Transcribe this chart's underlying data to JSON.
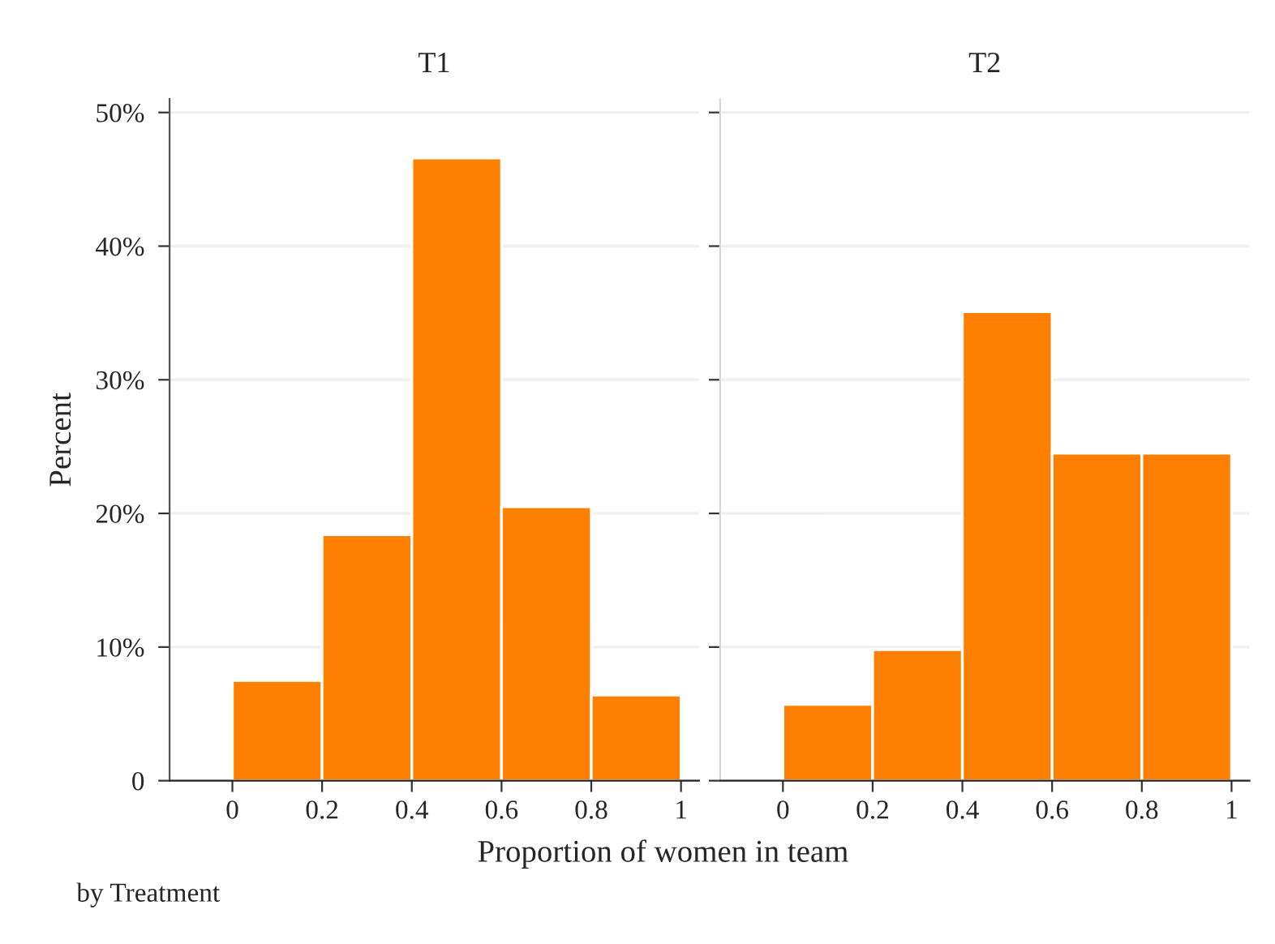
{
  "chart_data": [
    {
      "type": "histogram",
      "title": "T1",
      "ylabel": "Percent",
      "xlabel": "Proportion of women in team",
      "annotations": [
        "by Treatment"
      ],
      "bins": [
        0,
        0.2,
        0.4,
        0.6,
        0.8,
        1
      ],
      "values": [
        7.5,
        18.4,
        46.6,
        20.5,
        6.4
      ],
      "color": "#ff8000",
      "xlim": [
        -0.14,
        1.04
      ],
      "xticks": [
        0,
        0.2,
        0.4,
        0.6,
        0.8,
        1
      ],
      "ylim": [
        0,
        51
      ],
      "yticks": [
        0,
        {
          "value": 10,
          "label": "10%"
        },
        {
          "value": 20,
          "label": "20%"
        },
        {
          "value": 30,
          "label": "30%"
        },
        {
          "value": 40,
          "label": "40%"
        },
        {
          "value": 50,
          "label": "50%"
        }
      ],
      "grid": "y"
    },
    {
      "type": "histogram",
      "title": "T2",
      "bins": [
        0,
        0.2,
        0.4,
        0.6,
        0.8,
        1
      ],
      "values": [
        5.7,
        9.8,
        35.1,
        24.5,
        24.5
      ],
      "color": "#ff8000",
      "xlim": [
        -0.14,
        1.04
      ],
      "xticks": [
        0,
        0.2,
        0.4,
        0.6,
        0.8,
        1
      ],
      "ylim": [
        0,
        51
      ],
      "yticks": [
        {
          "value": 0,
          "label": null
        },
        {
          "value": 10,
          "label": null
        },
        {
          "value": 20,
          "label": null
        },
        {
          "value": 30,
          "label": null
        },
        {
          "value": 40,
          "label": null
        },
        {
          "value": 50,
          "label": null
        }
      ],
      "grid": "y",
      "tick_labels": "x"
    }
  ]
}
